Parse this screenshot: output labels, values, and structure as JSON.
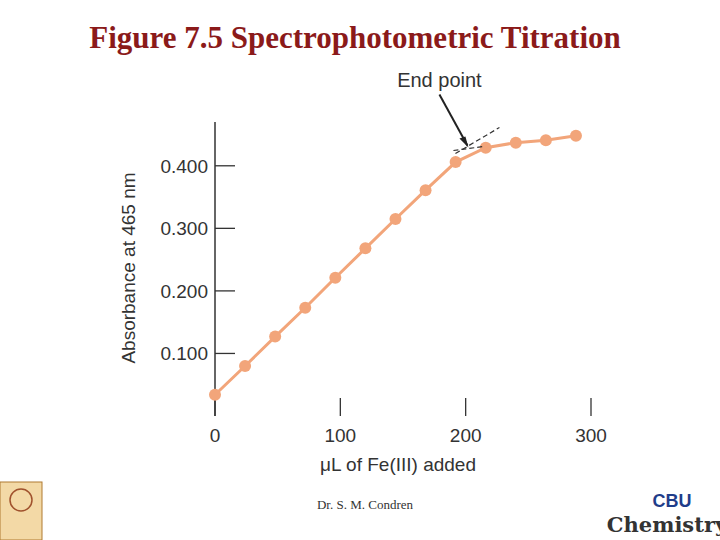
{
  "chart_data": {
    "type": "line",
    "title": "Figure 7.5 Spectrophotometric Titration",
    "x_label": "μL of Fe(III) added",
    "y_label": "Absorbance at 465 nm",
    "x": [
      0,
      24,
      48,
      72,
      96,
      120,
      144,
      168,
      192,
      216,
      240,
      264,
      288
    ],
    "values": [
      0.034,
      0.08,
      0.127,
      0.173,
      0.221,
      0.268,
      0.315,
      0.361,
      0.406,
      0.429,
      0.437,
      0.441,
      0.448
    ],
    "color": "#f2a57a",
    "marker": "circle",
    "xlim": [
      0,
      300
    ],
    "xticks": [
      0,
      100,
      200,
      300
    ],
    "ylim": [
      0,
      0.47
    ],
    "yticks": [
      {
        "value": 0.1,
        "label": "0.100"
      },
      {
        "value": 0.2,
        "label": "0.200"
      },
      {
        "value": 0.3,
        "label": "0.300"
      },
      {
        "value": 0.4,
        "label": "0.400"
      }
    ],
    "grid": false,
    "annotation": {
      "text": "End point",
      "x": 203,
      "y": 0.426
    },
    "source": "Dr. S. M. Condren",
    "logo": [
      "CBU",
      "Chemistry"
    ]
  }
}
